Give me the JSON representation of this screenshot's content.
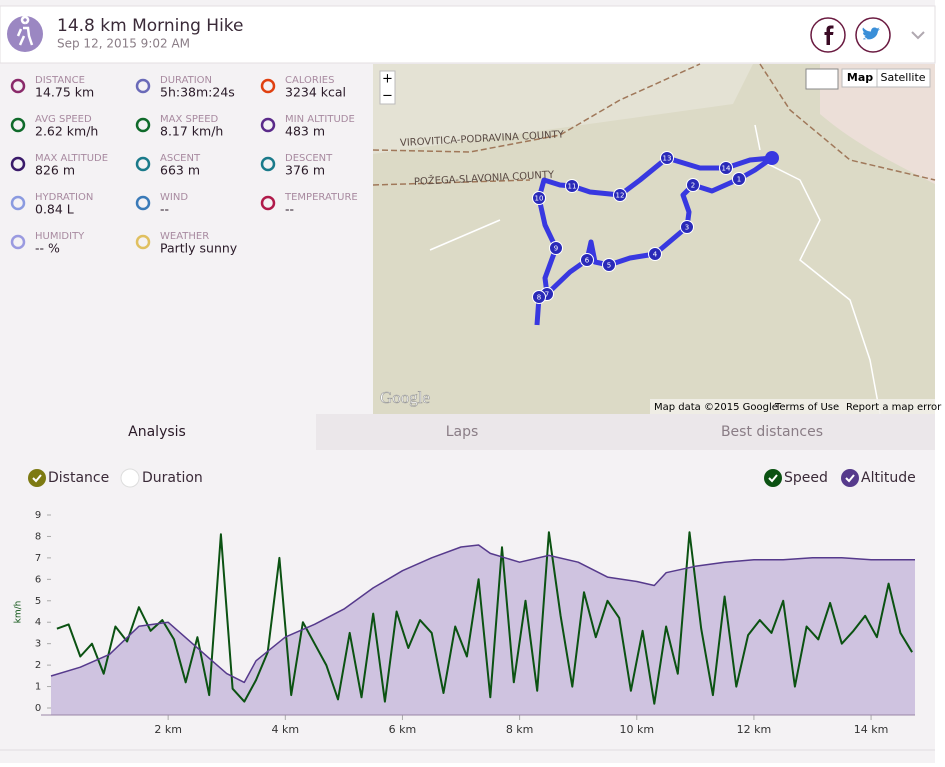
{
  "header": {
    "title": "14.8 km Morning Hike",
    "date": "Sep 12, 2015 9:02 AM"
  },
  "stats": [
    {
      "label": "DISTANCE",
      "value": "14.75 km"
    },
    {
      "label": "DURATION",
      "value": "5h:38m:24s"
    },
    {
      "label": "CALORIES",
      "value": "3234 kcal"
    },
    {
      "label": "AVG SPEED",
      "value": "2.62 km/h"
    },
    {
      "label": "MAX SPEED",
      "value": "8.17 km/h"
    },
    {
      "label": "MIN ALTITUDE",
      "value": "483 m"
    },
    {
      "label": "MAX ALTITUDE",
      "value": "826 m"
    },
    {
      "label": "ASCENT",
      "value": "663 m"
    },
    {
      "label": "DESCENT",
      "value": "376 m"
    },
    {
      "label": "HYDRATION",
      "value": "0.84 L"
    },
    {
      "label": "WIND",
      "value": "--"
    },
    {
      "label": "TEMPERATURE",
      "value": "--"
    },
    {
      "label": "HUMIDITY",
      "value": "-- %"
    },
    {
      "label": "WEATHER",
      "value": "Partly sunny"
    }
  ],
  "map": {
    "zoom_in": "+",
    "zoom_out": "−",
    "map_button": "Map",
    "satellite_button": "Satellite",
    "region_labels": [
      "VIROVITICA-PODRAVINA COUNTY",
      "POŽEGA-SLAVONIA COUNTY"
    ],
    "markers": [
      "1",
      "2",
      "3",
      "4",
      "5",
      "6",
      "7",
      "8",
      "9",
      "10",
      "11",
      "12",
      "13",
      "14"
    ],
    "logo": "Google",
    "attribution": "Map data ©2015 Google",
    "terms": "Terms of Use",
    "report": "Report a map error"
  },
  "tabs": [
    "Analysis",
    "Laps",
    "Best distances"
  ],
  "x_toggles": [
    "Distance",
    "Duration"
  ],
  "chart_data": {
    "type": "line",
    "y_label": "km/h",
    "xlim": [
      0,
      14.75
    ],
    "xticks": [
      {
        "value": 2,
        "label": "2 km"
      },
      {
        "value": 4,
        "label": "4 km"
      },
      {
        "value": 6,
        "label": "6 km"
      },
      {
        "value": 8,
        "label": "8 km"
      },
      {
        "value": 10,
        "label": "10 km"
      },
      {
        "value": 12,
        "label": "12 km"
      },
      {
        "value": 14,
        "label": "14 km"
      }
    ],
    "ylim": [
      0,
      9
    ],
    "yticks": [
      0,
      1,
      2,
      3,
      4,
      5,
      6,
      7,
      8,
      9
    ],
    "y2lim": [
      419,
      901
    ],
    "series": [
      {
        "name": "Speed",
        "color": "#0b5212",
        "x": [
          0.1,
          0.3,
          0.5,
          0.7,
          0.9,
          1.1,
          1.3,
          1.5,
          1.7,
          1.9,
          2.1,
          2.3,
          2.5,
          2.7,
          2.9,
          3.1,
          3.3,
          3.5,
          3.7,
          3.9,
          4.1,
          4.3,
          4.5,
          4.7,
          4.9,
          5.1,
          5.3,
          5.5,
          5.7,
          5.9,
          6.1,
          6.3,
          6.5,
          6.7,
          6.9,
          7.1,
          7.3,
          7.5,
          7.7,
          7.9,
          8.1,
          8.3,
          8.5,
          8.7,
          8.9,
          9.1,
          9.3,
          9.5,
          9.7,
          9.9,
          10.1,
          10.3,
          10.5,
          10.7,
          10.9,
          11.1,
          11.3,
          11.5,
          11.7,
          11.9,
          12.1,
          12.3,
          12.5,
          12.7,
          12.9,
          13.1,
          13.3,
          13.5,
          13.7,
          13.9,
          14.1,
          14.3,
          14.5,
          14.7
        ],
        "values": [
          3.7,
          3.9,
          2.4,
          3.0,
          1.6,
          3.8,
          3.1,
          4.7,
          3.6,
          4.1,
          3.2,
          1.2,
          3.3,
          0.6,
          8.1,
          0.9,
          0.3,
          1.3,
          2.6,
          7.0,
          0.6,
          4.0,
          3.0,
          2.0,
          0.4,
          3.5,
          0.5,
          4.4,
          0.3,
          4.5,
          2.8,
          4.1,
          3.5,
          0.7,
          3.8,
          2.4,
          6.0,
          0.5,
          7.5,
          1.2,
          5.0,
          0.8,
          8.2,
          4.3,
          1.0,
          5.4,
          3.3,
          5.0,
          4.2,
          0.8,
          3.6,
          0.2,
          3.8,
          1.6,
          8.2,
          3.7,
          0.6,
          5.2,
          1.0,
          3.4,
          4.1,
          3.5,
          5.0,
          1.0,
          3.8,
          3.2,
          4.9,
          3.0,
          3.6,
          4.3,
          3.3,
          5.8,
          3.5,
          2.6
        ]
      },
      {
        "name": "Altitude",
        "color": "#563a8c",
        "fill": "#cfc3e0",
        "axis": "y2",
        "x": [
          0,
          0.5,
          1,
          1.5,
          2,
          2.5,
          3,
          3.3,
          3.5,
          4,
          4.5,
          5,
          5.5,
          6,
          6.5,
          7,
          7.3,
          7.5,
          8,
          8.5,
          9,
          9.5,
          10,
          10.3,
          10.5,
          11,
          11.5,
          12,
          12.5,
          13,
          13.5,
          14,
          14.75
        ],
        "values": [
          499,
          521,
          553,
          623,
          633,
          569,
          505,
          483,
          537,
          596,
          628,
          666,
          719,
          762,
          794,
          821,
          826,
          805,
          783,
          800,
          783,
          746,
          735,
          725,
          757,
          773,
          783,
          789,
          789,
          794,
          794,
          789,
          789
        ]
      }
    ]
  }
}
